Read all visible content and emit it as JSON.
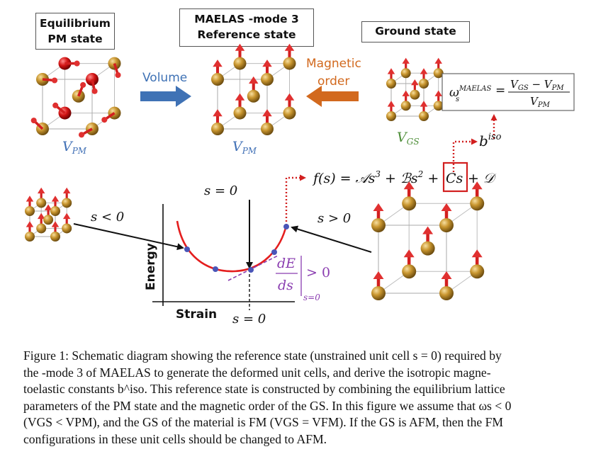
{
  "boxes": {
    "equilibrium": [
      "Equilibrium",
      "PM state"
    ],
    "reference": [
      "MAELAS -mode 3",
      "Reference state"
    ],
    "ground": "Ground state"
  },
  "arrows": {
    "volume": "Volume",
    "magnetic_order": [
      "Magnetic",
      "order"
    ]
  },
  "volume_labels": {
    "pm_left": "V",
    "pm_left_sub": "PM",
    "pm_mid": "V",
    "pm_mid_sub": "PM",
    "gs": "V",
    "gs_sub": "GS"
  },
  "formula": {
    "omega": "ω",
    "omega_sup": "MAELAS",
    "omega_sub": "s",
    "equals": "=",
    "numerator": "V",
    "num_sub1": "GS",
    "minus": " − V",
    "num_sub2": "PM",
    "denominator": "V",
    "den_sub": "PM"
  },
  "biso": {
    "b": "b",
    "sup": "iso"
  },
  "fs": {
    "lhs": "f(s) = 𝒜s",
    "exp3": "3",
    "b_term": " + ℬs",
    "exp2": "2",
    "plus": " +",
    "cs": "Cs",
    "d_term": "+ 𝒟"
  },
  "plot": {
    "s_zero_top": "s = 0",
    "s_neg": "s < 0",
    "s_pos": "s > 0",
    "energy": "Energy",
    "strain": "Strain",
    "s_zero_bottom": "s = 0",
    "dE": "dE",
    "ds": "ds",
    "gt0": "> 0",
    "s0sub": "s=0"
  },
  "caption": {
    "line1": "Figure 1: Schematic diagram showing the reference state (unstrained unit cell s = 0) required by",
    "line2": "the -mode 3 of MAELAS to generate the deformed unit cells, and derive the isotropic magne-",
    "line3": "toelastic constants b^iso. This reference state is constructed by combining the equilibrium lattice",
    "line4": "parameters of the PM state and the magnetic order of the GS. In this figure we assume that ωs < 0",
    "line5": "(VGS < VPM), and the GS of the material is FM (VGS = VFM). If the GS is AFM, then the FM",
    "line6": "configurations in these unit cells should be changed to AFM."
  },
  "colors": {
    "volume_arrow": "#3f72b5",
    "magnetic_arrow": "#d2691e",
    "pm_label": "#3f6fb5",
    "gs_label": "#4f8f3a",
    "curve": "#e41e1e",
    "points": "#4a56b8",
    "derivative": "#8a3db0",
    "highlight": "#d21f1f"
  }
}
